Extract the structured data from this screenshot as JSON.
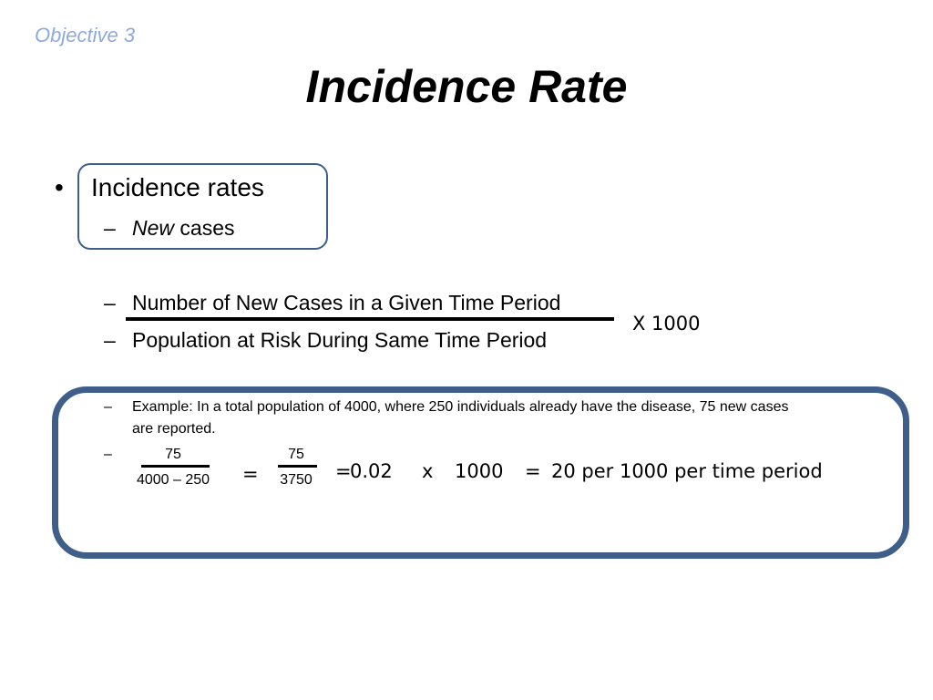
{
  "slide": {
    "objective": "Objective 3",
    "title": "Incidence Rate",
    "bullets": {
      "main_symbol": "•",
      "main": "Incidence rates",
      "dash": "–",
      "sub_italic": "New",
      "sub_rest": " cases"
    },
    "formula": {
      "numerator": "Number of New Cases in a Given Time Period",
      "denominator": "Population at Risk During Same Time Period",
      "multiplier": "X 1000"
    },
    "example": {
      "line1": "Example: In a total population of 4000, where 250 individuals already have the disease, 75 new cases",
      "line2": "are reported.",
      "frac1_num": "75",
      "frac1_den": "4000 – 250",
      "equals": "=",
      "frac2_num": "75",
      "frac2_den": "3750",
      "result_value": "0.02",
      "times": "x",
      "thousand": "1000",
      "result": "20 per 1000 per time period"
    },
    "colors": {
      "objective": "#8eaadb",
      "box_border": "#3f5f8a"
    }
  }
}
